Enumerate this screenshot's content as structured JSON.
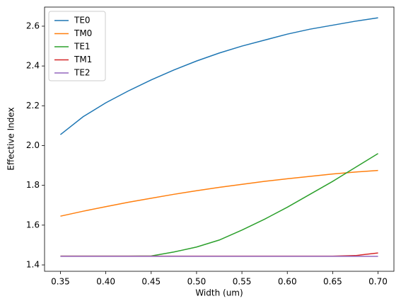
{
  "chart_data": {
    "type": "line",
    "xlabel": "Width (um)",
    "ylabel": "Effective Index",
    "x": [
      0.35,
      0.375,
      0.4,
      0.425,
      0.45,
      0.475,
      0.5,
      0.525,
      0.55,
      0.575,
      0.6,
      0.625,
      0.65,
      0.675,
      0.7
    ],
    "series": [
      {
        "name": "TE0",
        "color": "#1f77b4",
        "values": [
          2.055,
          2.145,
          2.215,
          2.275,
          2.33,
          2.38,
          2.425,
          2.465,
          2.5,
          2.53,
          2.56,
          2.585,
          2.605,
          2.625,
          2.642
        ]
      },
      {
        "name": "TM0",
        "color": "#ff7f0e",
        "values": [
          1.645,
          1.67,
          1.693,
          1.715,
          1.735,
          1.755,
          1.773,
          1.79,
          1.805,
          1.82,
          1.833,
          1.845,
          1.857,
          1.867,
          1.875
        ]
      },
      {
        "name": "TE1",
        "color": "#2ca02c",
        "values": [
          1.444,
          1.444,
          1.444,
          1.444,
          1.445,
          1.465,
          1.49,
          1.525,
          1.575,
          1.63,
          1.69,
          1.755,
          1.82,
          1.89,
          1.96
        ]
      },
      {
        "name": "TM1",
        "color": "#d62728",
        "values": [
          1.444,
          1.444,
          1.444,
          1.444,
          1.444,
          1.444,
          1.444,
          1.444,
          1.444,
          1.444,
          1.444,
          1.444,
          1.444,
          1.447,
          1.46
        ]
      },
      {
        "name": "TE2",
        "color": "#9467bd",
        "values": [
          1.443,
          1.443,
          1.443,
          1.443,
          1.443,
          1.443,
          1.443,
          1.443,
          1.443,
          1.443,
          1.443,
          1.443,
          1.443,
          1.443,
          1.443
        ]
      }
    ],
    "xlim": [
      0.3325,
      0.7175
    ],
    "xticks": [
      0.35,
      {
        "value": 0.4,
        "label": "0.40"
      },
      0.45,
      {
        "value": 0.5,
        "label": "0.50"
      },
      0.55,
      {
        "value": 0.6,
        "label": "0.60"
      },
      0.65,
      {
        "value": 0.7,
        "label": "0.70"
      }
    ],
    "ylim": [
      1.368,
      2.696
    ],
    "yticks": [
      1.4,
      1.6,
      1.8,
      2.0,
      2.2,
      2.4,
      2.6
    ],
    "ytick_labels": [
      "1.4",
      "1.6",
      "1.8",
      "2.0",
      "2.2",
      "2.4",
      "2.6"
    ],
    "legend": "upper left",
    "grid": false
  }
}
